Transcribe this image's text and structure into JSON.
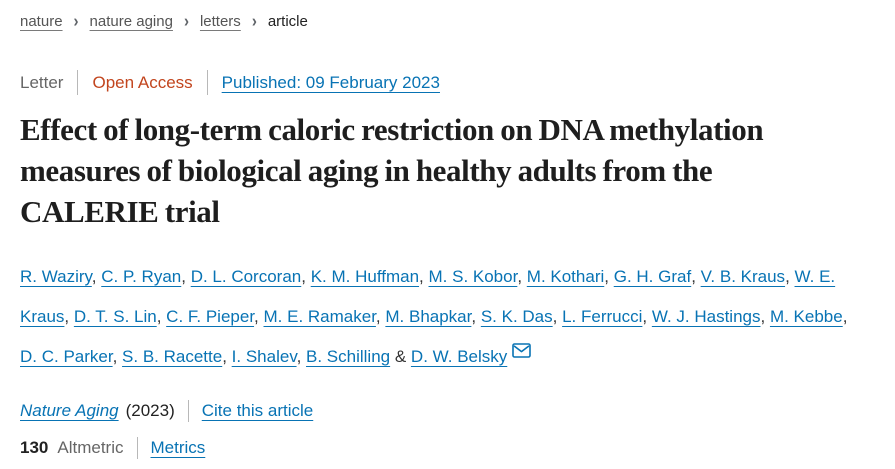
{
  "breadcrumb": {
    "separator": "›",
    "items": [
      {
        "label": "nature"
      },
      {
        "label": "nature aging"
      },
      {
        "label": "letters"
      },
      {
        "label": "article"
      }
    ]
  },
  "meta_bar": {
    "article_type": "Letter",
    "access": "Open Access",
    "published": "Published: 09 February 2023"
  },
  "title": "Effect of long-term caloric restriction on DNA methylation measures of biological aging in healthy adults from the CALERIE trial",
  "authors": {
    "names": [
      "R. Waziry",
      "C. P. Ryan",
      "D. L. Corcoran",
      "K. M. Huffman",
      "M. S. Kobor",
      "M. Kothari",
      "G. H. Graf",
      "V. B. Kraus",
      "W. E. Kraus",
      "D. T. S. Lin",
      "C. F. Pieper",
      "M. E. Ramaker",
      "M. Bhapkar",
      "S. K. Das",
      "L. Ferrucci",
      "W. J. Hastings",
      "M. Kebbe",
      "D. C. Parker",
      "S. B. Racette",
      "I. Shalev",
      "B. Schilling",
      "D. W. Belsky"
    ],
    "separator": ", ",
    "ampersand": "&"
  },
  "citation": {
    "journal": "Nature Aging",
    "year": "(2023)",
    "cite_link": "Cite this article"
  },
  "metrics": {
    "count": "130",
    "label": "Altmetric",
    "link": "Metrics"
  },
  "colors": {
    "link_blue": "#0873b4",
    "open_access_orange": "#c2451e",
    "text_dark": "#222222",
    "text_gray": "#666666"
  }
}
